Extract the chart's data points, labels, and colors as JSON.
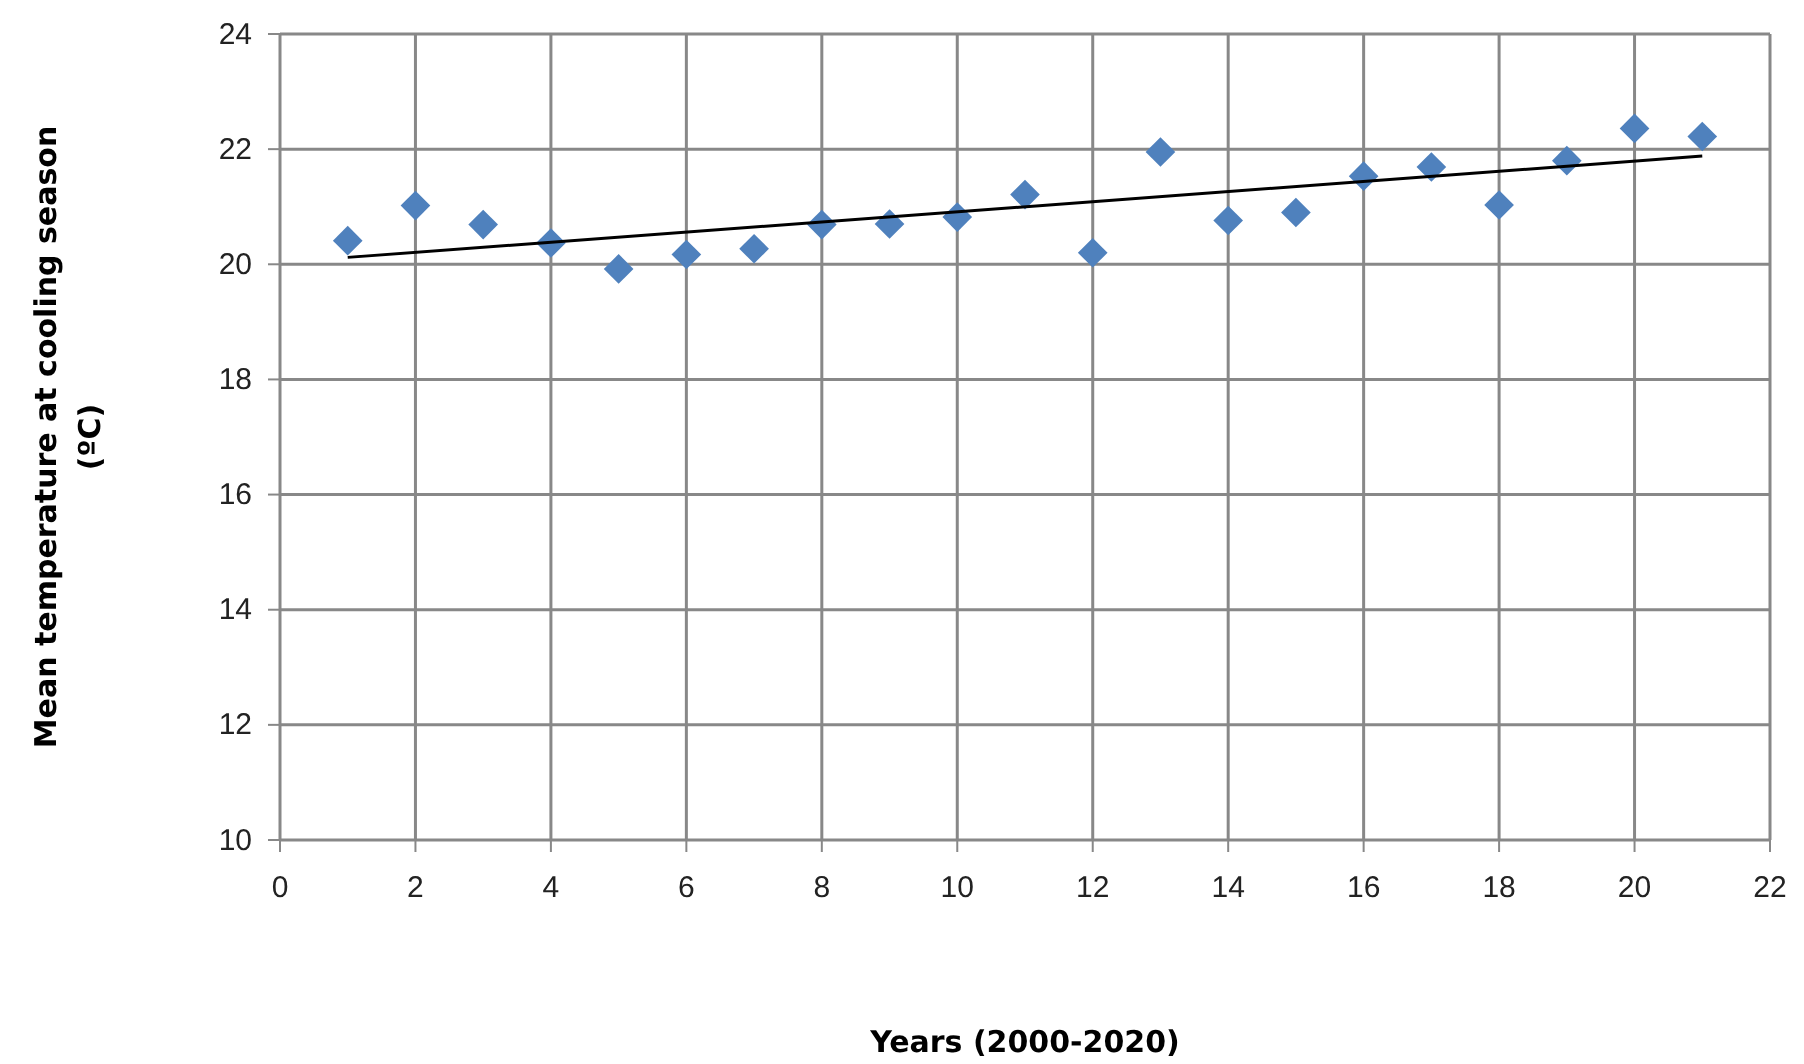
{
  "chart_data": {
    "type": "scatter",
    "xlabel": "Years (2000-2020)",
    "ylabel": "Mean temperature at cooling season (ºC)",
    "xlim": [
      0,
      22
    ],
    "xticks": [
      0,
      2,
      4,
      6,
      8,
      10,
      12,
      14,
      16,
      18,
      20,
      22
    ],
    "ylim": [
      10,
      24
    ],
    "yticks": [
      10,
      12,
      14,
      16,
      18,
      20,
      22,
      24
    ],
    "grid": true,
    "marker": "diamond",
    "series": [
      {
        "color": "#4f81bd",
        "x": [
          1,
          2,
          3,
          4,
          5,
          6,
          7,
          8,
          9,
          10,
          11,
          12,
          13,
          14,
          15,
          16,
          17,
          18,
          19,
          20,
          21
        ],
        "values": [
          20.41,
          21.02,
          20.69,
          20.37,
          19.92,
          20.17,
          20.27,
          20.69,
          20.7,
          20.82,
          21.21,
          20.2,
          21.95,
          20.76,
          20.9,
          21.53,
          21.69,
          21.03,
          21.8,
          22.36,
          22.22
        ]
      },
      {
        "type": "line",
        "color": "#000000",
        "marker": "none",
        "x": [
          1,
          21
        ],
        "values": [
          20.12,
          21.88
        ]
      }
    ]
  }
}
